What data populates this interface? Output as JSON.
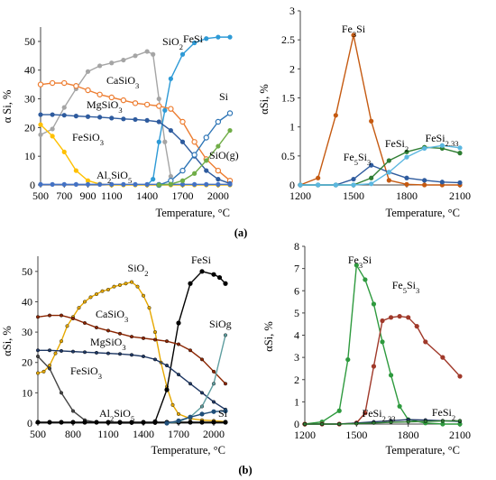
{
  "panel_labels": [
    "(a)",
    "(b)"
  ],
  "chart_data": [
    {
      "type": "line",
      "panel": "a-left",
      "ylabel": "α Si, %",
      "xlabel": "Temperature, °C",
      "xlim": [
        500,
        2100
      ],
      "ylim": [
        0,
        55
      ],
      "xticks": [
        500,
        700,
        900,
        1100,
        1400,
        1700,
        2000
      ],
      "yticks": [
        0,
        10,
        20,
        30,
        40,
        50
      ],
      "grid": false,
      "series": [
        {
          "name": "SiO2",
          "label": "SiO₂",
          "color": "#a5a5a5",
          "marker": "filled",
          "x": [
            500,
            600,
            700,
            800,
            900,
            1000,
            1100,
            1200,
            1300,
            1400,
            1450,
            1500,
            1550,
            1600
          ],
          "y": [
            17.5,
            19.5,
            27,
            33.5,
            39.5,
            41.5,
            42.5,
            43.5,
            45,
            46.5,
            45.5,
            30,
            15,
            3
          ]
        },
        {
          "name": "FeSi",
          "label": "FeSi",
          "color": "#2e9ad6",
          "marker": "filled",
          "x": [
            1400,
            1450,
            1500,
            1550,
            1600,
            1700,
            1800,
            1900,
            2000,
            2100
          ],
          "y": [
            0,
            2,
            15,
            26,
            37,
            45.5,
            49.5,
            51,
            51.5,
            51.5
          ]
        },
        {
          "name": "CaSiO3",
          "label": "CaSiO₃",
          "color": "#ed7d31",
          "marker": "open",
          "x": [
            500,
            600,
            700,
            800,
            900,
            1000,
            1100,
            1200,
            1300,
            1400,
            1500,
            1600,
            1700,
            1800,
            1900,
            2000,
            2100
          ],
          "y": [
            35,
            35.5,
            35.5,
            34.5,
            33,
            31.5,
            30.5,
            29.5,
            28.5,
            28,
            27.5,
            26.5,
            22,
            15,
            9,
            5,
            1.5
          ]
        },
        {
          "name": "MgSiO3",
          "label": "MgSiO₃",
          "color": "#2e5b9e",
          "marker": "filled",
          "x": [
            500,
            600,
            700,
            800,
            900,
            1000,
            1100,
            1200,
            1300,
            1400,
            1500,
            1600,
            1700,
            1800,
            1900,
            2000,
            2100
          ],
          "y": [
            24.5,
            24.5,
            24.3,
            24,
            23.8,
            23.6,
            23.3,
            23,
            22.8,
            22.5,
            22,
            19,
            15,
            10,
            5,
            2,
            0.5
          ]
        },
        {
          "name": "FeSiO3",
          "label": "FeSiO₃",
          "color": "#ffc000",
          "marker": "filled",
          "x": [
            500,
            600,
            700,
            800,
            900,
            1000,
            1100,
            1200,
            1300,
            1400,
            1500,
            1600,
            1700,
            1800,
            1900,
            2000,
            2100
          ],
          "y": [
            21,
            17,
            11.5,
            5,
            1.5,
            0.3,
            0,
            0,
            0,
            0,
            0,
            0,
            0,
            0,
            0,
            0,
            0
          ]
        },
        {
          "name": "Al2SiO5",
          "label": "Al₂SiO₅",
          "color": "#4472c4",
          "marker": "filled",
          "x": [
            500,
            600,
            700,
            800,
            900,
            1000,
            1100,
            1200,
            1300,
            1400,
            1500,
            1600,
            1700,
            1800,
            1900,
            2000,
            2100
          ],
          "y": [
            0.2,
            0.2,
            0.2,
            0.2,
            0.2,
            0.2,
            0.2,
            0.2,
            0.2,
            0.2,
            0.2,
            0.2,
            0.2,
            0.2,
            0.2,
            0.2,
            0.2
          ]
        },
        {
          "name": "Si",
          "label": "Si",
          "color": "#2e75b6",
          "marker": "open",
          "x": [
            1500,
            1600,
            1700,
            1800,
            1900,
            2000,
            2100
          ],
          "y": [
            0,
            1.5,
            5,
            10.5,
            16.5,
            22,
            25
          ]
        },
        {
          "name": "SiO(g)",
          "label": "SiO(g)",
          "color": "#70ad47",
          "marker": "filled",
          "x": [
            1500,
            1600,
            1700,
            1800,
            1900,
            2000,
            2100
          ],
          "y": [
            0,
            0.3,
            1.5,
            4,
            8.5,
            13.5,
            19
          ]
        }
      ]
    },
    {
      "type": "line",
      "panel": "a-right",
      "ylabel": "αSi, %",
      "xlabel": "Temperature, °C",
      "xlim": [
        1200,
        2100
      ],
      "ylim": [
        0,
        3
      ],
      "xticks": [
        1200,
        1500,
        1800,
        2100
      ],
      "yticks": [
        0,
        0.5,
        1,
        1.5,
        2,
        2.5,
        3
      ],
      "ytick_labels": [
        "0",
        "0.5",
        "1",
        "1.5",
        "2",
        "2.5",
        "3"
      ],
      "grid": false,
      "series": [
        {
          "name": "Fe3Si",
          "label": "Fe₃Si",
          "color": "#c55a11",
          "marker": "filled",
          "x": [
            1200,
            1300,
            1400,
            1500,
            1600,
            1700,
            1800,
            1900,
            2000,
            2100
          ],
          "y": [
            0,
            0.12,
            1.2,
            2.58,
            1.1,
            0.08,
            0.01,
            0,
            0,
            0
          ]
        },
        {
          "name": "Fe5Si3",
          "label": "Fe₅Si₃",
          "color": "#2e5b9e",
          "marker": "filled",
          "x": [
            1200,
            1300,
            1400,
            1500,
            1600,
            1700,
            1800,
            1900,
            2000,
            2100
          ],
          "y": [
            0,
            0,
            0,
            0.1,
            0.34,
            0.22,
            0.12,
            0.08,
            0.05,
            0.04
          ]
        },
        {
          "name": "FeSi2",
          "label": "FeSi₂",
          "color": "#2e7d32",
          "marker": "filled",
          "x": [
            1200,
            1300,
            1400,
            1500,
            1600,
            1700,
            1800,
            1900,
            2000,
            2100
          ],
          "y": [
            0,
            0,
            0,
            0,
            0.12,
            0.42,
            0.57,
            0.65,
            0.63,
            0.55
          ]
        },
        {
          "name": "FeSi2.33",
          "label": "FeSi₂.₃₃",
          "color": "#5bb7e0",
          "marker": "filled",
          "x": [
            1200,
            1300,
            1400,
            1500,
            1600,
            1700,
            1800,
            1900,
            2000,
            2100
          ],
          "y": [
            0,
            0,
            0,
            0,
            0.02,
            0.22,
            0.48,
            0.63,
            0.68,
            0.64
          ]
        }
      ]
    },
    {
      "type": "line",
      "panel": "b-left",
      "ylabel": "αSi, %",
      "xlabel": "Temperature, °C",
      "xlim": [
        500,
        2100
      ],
      "ylim": [
        0,
        55
      ],
      "xticks": [
        500,
        800,
        1100,
        1400,
        1700,
        2000
      ],
      "yticks": [
        0,
        10,
        20,
        30,
        40,
        50
      ],
      "grid": false,
      "series": [
        {
          "name": "SiO2",
          "label": "SiO₂",
          "color": "#e6a800",
          "marker": "small",
          "x": [
            500,
            550,
            600,
            650,
            700,
            750,
            800,
            850,
            900,
            950,
            1000,
            1050,
            1100,
            1150,
            1200,
            1250,
            1300,
            1350,
            1400,
            1450,
            1500,
            1550,
            1600,
            1650,
            1700,
            1800,
            1900,
            2000,
            2100
          ],
          "y": [
            16.5,
            17,
            19,
            23,
            27,
            32,
            35,
            38,
            40,
            41.5,
            42.5,
            43.5,
            44,
            45,
            45.5,
            46,
            46.5,
            45,
            42,
            38,
            30,
            20,
            12,
            6,
            3,
            1.5,
            1,
            0.8,
            0.5
          ]
        },
        {
          "name": "FeSi",
          "label": "FeSi",
          "color": "#000000",
          "marker": "filled",
          "x": [
            1500,
            1600,
            1700,
            1800,
            1900,
            2000,
            2050,
            2100
          ],
          "y": [
            0.5,
            11,
            33,
            46,
            50,
            49,
            48,
            46
          ]
        },
        {
          "name": "CaSiO3",
          "label": "CaSiO₃",
          "color": "#8b2500",
          "marker": "small",
          "x": [
            500,
            600,
            700,
            800,
            900,
            1000,
            1100,
            1200,
            1300,
            1400,
            1500,
            1600,
            1700,
            1800,
            1900,
            2000,
            2100
          ],
          "y": [
            35,
            35.5,
            35.5,
            34.5,
            33,
            31.5,
            30.5,
            29.5,
            28.5,
            28,
            27.5,
            27,
            26,
            24,
            21,
            17,
            13
          ]
        },
        {
          "name": "MgSiO3",
          "label": "MgSiO₃",
          "color": "#1f3864",
          "marker": "small",
          "x": [
            500,
            600,
            700,
            800,
            900,
            1000,
            1100,
            1200,
            1300,
            1400,
            1500,
            1600,
            1700,
            1800,
            1900,
            2000,
            2100
          ],
          "y": [
            24,
            24,
            23.8,
            23.6,
            23.4,
            23.2,
            23,
            22.8,
            22.5,
            22,
            21,
            19,
            16,
            13,
            10,
            7,
            4.5
          ]
        },
        {
          "name": "FeSiO3",
          "label": "FeSiO₃",
          "color": "#444444",
          "marker": "small",
          "x": [
            500,
            600,
            700,
            800,
            900,
            1000,
            1100,
            1200,
            1300,
            1400,
            1500
          ],
          "y": [
            22,
            18,
            10,
            4,
            1,
            0.3,
            0,
            0,
            0,
            0,
            0
          ]
        },
        {
          "name": "Al2SiO5",
          "label": "Al₂SiO₅",
          "color": "#000000",
          "marker": "filled",
          "x": [
            500,
            600,
            700,
            800,
            900,
            1000,
            1100,
            1200,
            1300,
            1400,
            1500,
            1600,
            1700,
            1800,
            1900,
            2000,
            2100
          ],
          "y": [
            0.3,
            0.3,
            0.3,
            0.3,
            0.3,
            0.3,
            0.3,
            0.3,
            0.3,
            0.3,
            0.3,
            0.3,
            0.3,
            0.3,
            0.3,
            0.3,
            0.3
          ]
        },
        {
          "name": "SiOg",
          "label": "SiOg",
          "color": "#5f9ea0",
          "marker": "small",
          "x": [
            1600,
            1700,
            1800,
            1900,
            2000,
            2100
          ],
          "y": [
            0,
            0.5,
            2,
            5.5,
            13,
            29
          ]
        },
        {
          "name": "Si",
          "label": "Si",
          "color": "#1f4e79",
          "marker": "filled",
          "x": [
            1600,
            1700,
            1800,
            1900,
            2000,
            2100
          ],
          "y": [
            0,
            0.8,
            2,
            3,
            3.8,
            4
          ]
        }
      ]
    },
    {
      "type": "line",
      "panel": "b-right",
      "ylabel": "αSi, %",
      "xlabel": "Temperature, °C",
      "xlim": [
        1200,
        2100
      ],
      "ylim": [
        0,
        8
      ],
      "xticks": [
        1200,
        1500,
        1800,
        2100
      ],
      "yticks": [
        0,
        1,
        2,
        3,
        4,
        5,
        6,
        7,
        8
      ],
      "grid": false,
      "series": [
        {
          "name": "Fe3Si",
          "label": "Fe₃Si",
          "color": "#2e9a3e",
          "marker": "filled",
          "x": [
            1200,
            1300,
            1400,
            1450,
            1500,
            1550,
            1600,
            1650,
            1700,
            1750,
            1800,
            1900,
            2000,
            2100
          ],
          "y": [
            0,
            0.1,
            0.6,
            2.9,
            7.15,
            6.5,
            5.4,
            3.7,
            2.2,
            0.8,
            0.2,
            0.05,
            0,
            0
          ]
        },
        {
          "name": "Fe5Si3",
          "label": "Fe₅Si₃",
          "color": "#a0392a",
          "marker": "filled",
          "x": [
            1200,
            1300,
            1400,
            1500,
            1550,
            1600,
            1650,
            1700,
            1750,
            1800,
            1850,
            1900,
            2000,
            2100
          ],
          "y": [
            0,
            0,
            0,
            0.05,
            0.5,
            2.6,
            4.65,
            4.8,
            4.85,
            4.8,
            4.4,
            3.7,
            3.0,
            2.15
          ]
        },
        {
          "name": "FeSi2.33",
          "label": "FeSi₂.₃₃",
          "color": "#1f3864",
          "marker": "small",
          "x": [
            1200,
            1300,
            1400,
            1500,
            1600,
            1700,
            1800,
            1900,
            2000,
            2100
          ],
          "y": [
            0,
            0,
            0,
            0.05,
            0.1,
            0.15,
            0.2,
            0.18,
            0.15,
            0.12
          ]
        },
        {
          "name": "FeSi2",
          "label": "FeSi₂",
          "color": "#2e7d32",
          "marker": "small",
          "x": [
            1200,
            1300,
            1400,
            1500,
            1600,
            1700,
            1800,
            1900,
            2000,
            2100
          ],
          "y": [
            0,
            0,
            0,
            0.02,
            0.05,
            0.08,
            0.1,
            0.12,
            0.14,
            0.15
          ]
        }
      ]
    }
  ]
}
